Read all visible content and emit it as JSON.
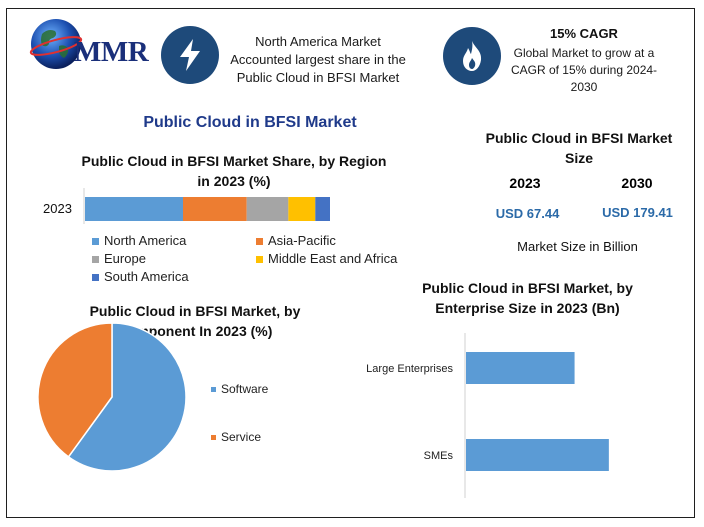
{
  "header": {
    "logo_text": "MMR",
    "box1_text": [
      "North America Market",
      "Accounted largest share in the",
      "Public Cloud in BFSI Market"
    ],
    "box2_title": "15% CAGR",
    "box2_text": [
      "Global Market to grow at a",
      "CAGR of 15% during 2024-",
      "2030"
    ],
    "icons": [
      "globe-icon",
      "lightning-bolt-icon",
      "flame-icon"
    ]
  },
  "main_title": "Public Cloud in BFSI Market",
  "market_size": {
    "title": [
      "Public Cloud in BFSI Market",
      "Size"
    ],
    "col1_year": "2023",
    "col1_value": "USD 67.44",
    "col2_year": "2030",
    "col2_value": "USD 179.41",
    "unit_note": "Market Size in Billion"
  },
  "colors": {
    "north_america": "#5b9bd5",
    "asia_pacific": "#ed7d31",
    "europe": "#a5a5a5",
    "mea": "#ffc000",
    "south_america": "#4472c4",
    "software": "#5b9bd5",
    "service": "#ed7d31",
    "enterprise_bar": "#5b9bd5",
    "icon_circle": "#1e4a7a"
  },
  "chart_data": [
    {
      "type": "bar",
      "orientation": "horizontal-stacked",
      "title": [
        "Public Cloud in BFSI Market Share, by Region",
        "in 2023 (%)"
      ],
      "categories": [
        "2023"
      ],
      "series": [
        {
          "name": "North America",
          "values": [
            40
          ]
        },
        {
          "name": "Asia-Pacific",
          "values": [
            26
          ]
        },
        {
          "name": "Europe",
          "values": [
            17
          ]
        },
        {
          "name": "Middle East and Africa",
          "values": [
            11
          ]
        },
        {
          "name": "South America",
          "values": [
            6
          ]
        }
      ],
      "legend_placement": "bottom"
    },
    {
      "type": "pie",
      "title": [
        "Public Cloud in BFSI Market, by",
        "Component In 2023 (%)"
      ],
      "slices": [
        {
          "name": "Software",
          "value": 60
        },
        {
          "name": "Service",
          "value": 40
        }
      ],
      "legend_placement": "right"
    },
    {
      "type": "bar",
      "orientation": "horizontal",
      "title": [
        "Public Cloud in BFSI Market, by",
        "Enterprise Size in 2023 (Bn)"
      ],
      "categories": [
        "Large Enterprises",
        "SMEs"
      ],
      "values": [
        38,
        50
      ],
      "xlim": [
        0,
        70
      ]
    }
  ]
}
